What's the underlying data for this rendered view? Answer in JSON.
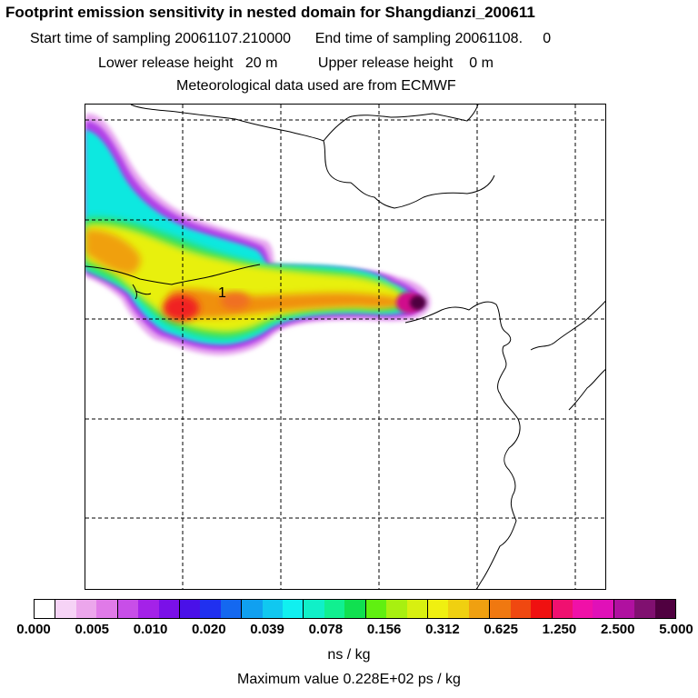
{
  "title": "Footprint emission sensitivity in nested domain for Shangdianzi_200611",
  "start_label": "Start time of sampling",
  "start_value": "20061107.210000",
  "end_label": "End time of sampling",
  "end_value": "20061108.",
  "end_extra": "0",
  "lower_label": "Lower release height",
  "lower_value": "20 m",
  "upper_label": "Upper release height",
  "upper_value": "0 m",
  "met_text": "Meteorological data used are from ECMWF",
  "map_marker": "1",
  "colorbar": {
    "colors": [
      "#ffffff",
      "#f6d3f6",
      "#eca6ec",
      "#e07ae8",
      "#c84ee8",
      "#a422e8",
      "#7a10e8",
      "#4a10e8",
      "#2030f0",
      "#1468f0",
      "#10a0f0",
      "#10c8f0",
      "#10f0f0",
      "#10f0c8",
      "#10f090",
      "#10e050",
      "#60f010",
      "#a8f010",
      "#d8f010",
      "#f0f010",
      "#f0d010",
      "#f0a010",
      "#f07810",
      "#f04810",
      "#f01010",
      "#f01070",
      "#f010a8",
      "#e010b8",
      "#b010a0",
      "#801070",
      "#500040"
    ],
    "ticks": [
      "0.000",
      "0.005",
      "0.010",
      "0.020",
      "0.039",
      "0.078",
      "0.156",
      "0.312",
      "0.625",
      "1.250",
      "2.500",
      "5.000"
    ],
    "units": "ns / kg"
  },
  "max_value_text": "Maximum value  0.228E+02 ps / kg"
}
